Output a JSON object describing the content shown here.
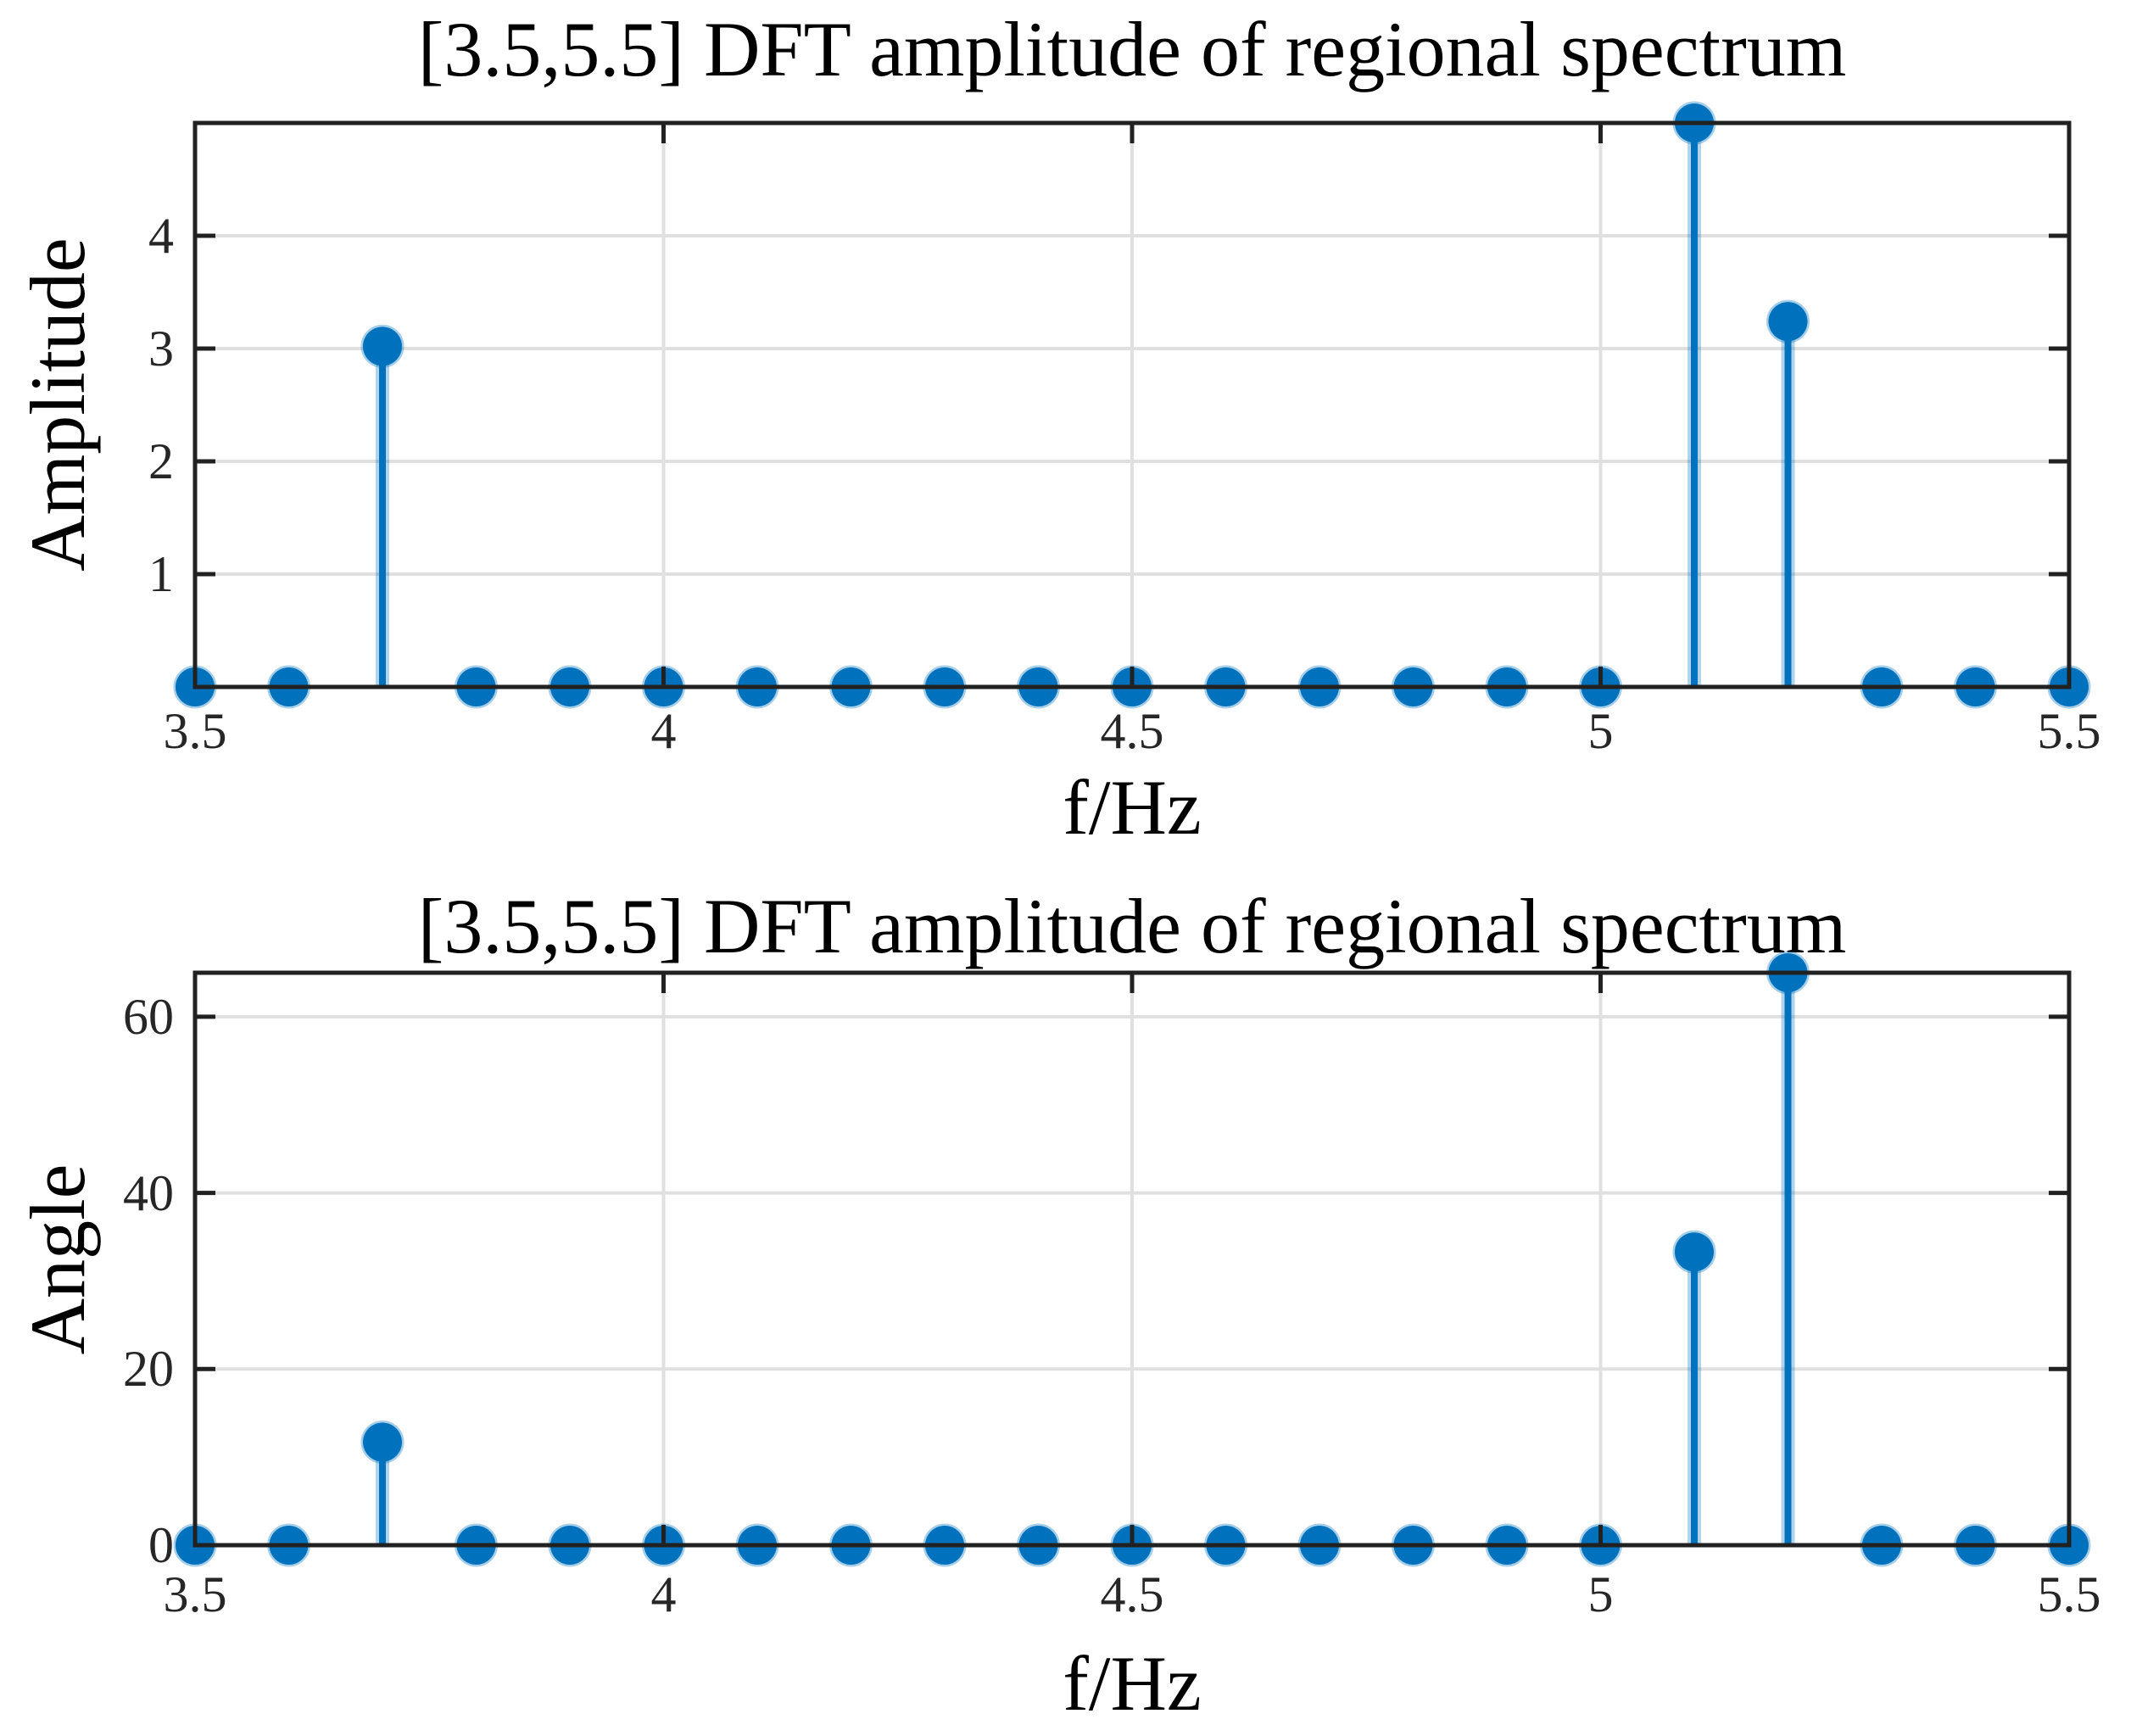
{
  "figure": {
    "background": "#ffffff",
    "accent_color": "#0072BD",
    "grid_color": "#e0e0e0",
    "axis_color": "#212121",
    "tick_label_color": "#262626"
  },
  "chart_data": [
    {
      "type": "stem",
      "title": "[3.5,5.5] DFT amplitude of regional spectrum",
      "xlabel": "f/Hz",
      "ylabel": "Amplitude",
      "xlim": [
        3.5,
        5.5
      ],
      "ylim": [
        0,
        5
      ],
      "xticks": [
        3.5,
        4,
        4.5,
        5,
        5.5
      ],
      "xtick_labels": [
        "3.5",
        "4",
        "4.5",
        "5",
        "5.5"
      ],
      "yticks": [
        1,
        2,
        3,
        4
      ],
      "ytick_labels": [
        "1",
        "2",
        "3",
        "4"
      ],
      "grid": true,
      "legend": null,
      "x": [
        3.5,
        3.6,
        3.7,
        3.8,
        3.9,
        4.0,
        4.1,
        4.2,
        4.3,
        4.4,
        4.5,
        4.6,
        4.7,
        4.8,
        4.9,
        5.0,
        5.1,
        5.2,
        5.3,
        5.4,
        5.5
      ],
      "values": [
        0,
        0,
        3.02,
        0,
        0,
        0,
        0,
        0,
        0,
        0,
        0,
        0,
        0,
        0,
        0,
        0,
        5.0,
        3.24,
        0,
        0,
        0
      ],
      "stem_color": "#0072BD"
    },
    {
      "type": "stem",
      "title": "[3.5,5.5] DFT amplitude of regional spectrum",
      "xlabel": "f/Hz",
      "ylabel": "Angle",
      "xlim": [
        3.5,
        5.5
      ],
      "ylim": [
        0,
        65
      ],
      "xticks": [
        3.5,
        4,
        4.5,
        5,
        5.5
      ],
      "xtick_labels": [
        "3.5",
        "4",
        "4.5",
        "5",
        "5.5"
      ],
      "yticks": [
        0,
        20,
        40,
        60
      ],
      "ytick_labels": [
        "0",
        "20",
        "40",
        "60"
      ],
      "grid": true,
      "legend": null,
      "x": [
        3.5,
        3.6,
        3.7,
        3.8,
        3.9,
        4.0,
        4.1,
        4.2,
        4.3,
        4.4,
        4.5,
        4.6,
        4.7,
        4.8,
        4.9,
        5.0,
        5.1,
        5.2,
        5.3,
        5.4,
        5.5
      ],
      "values": [
        0,
        0,
        11.7,
        0,
        0,
        0,
        0,
        0,
        0,
        0,
        0,
        0,
        0,
        0,
        0,
        0,
        33.3,
        65,
        0,
        0,
        0
      ],
      "stem_color": "#0072BD"
    }
  ]
}
